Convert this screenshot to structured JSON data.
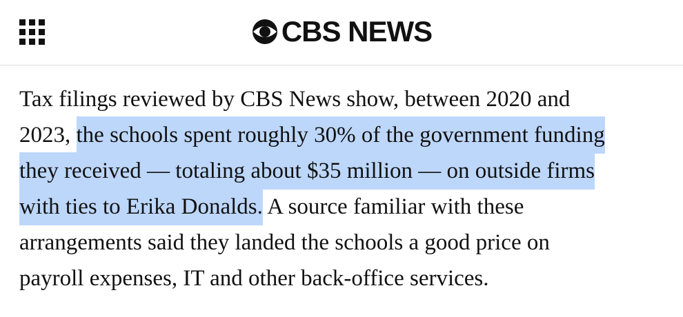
{
  "header": {
    "logo": "CBS NEWS"
  },
  "paragraph": {
    "lines": [
      [
        {
          "text": "Tax filings reviewed by CBS News show, between 2020 and",
          "highlight": false
        }
      ],
      [
        {
          "text": "2023, ",
          "highlight": false
        },
        {
          "text": "the schools spent roughly 30% of the government funding",
          "highlight": true
        }
      ],
      [
        {
          "text": "they received — totaling about $35 million — on outside firms",
          "highlight": true
        }
      ],
      [
        {
          "text": "with ties to Erika Donalds.",
          "highlight": true
        },
        {
          "text": " A source familiar with these",
          "highlight": false
        }
      ],
      [
        {
          "text": "arrangements said they landed the schools a good price on",
          "highlight": false
        }
      ],
      [
        {
          "text": "payroll expenses, IT and other back-office services.",
          "highlight": false
        }
      ]
    ]
  }
}
